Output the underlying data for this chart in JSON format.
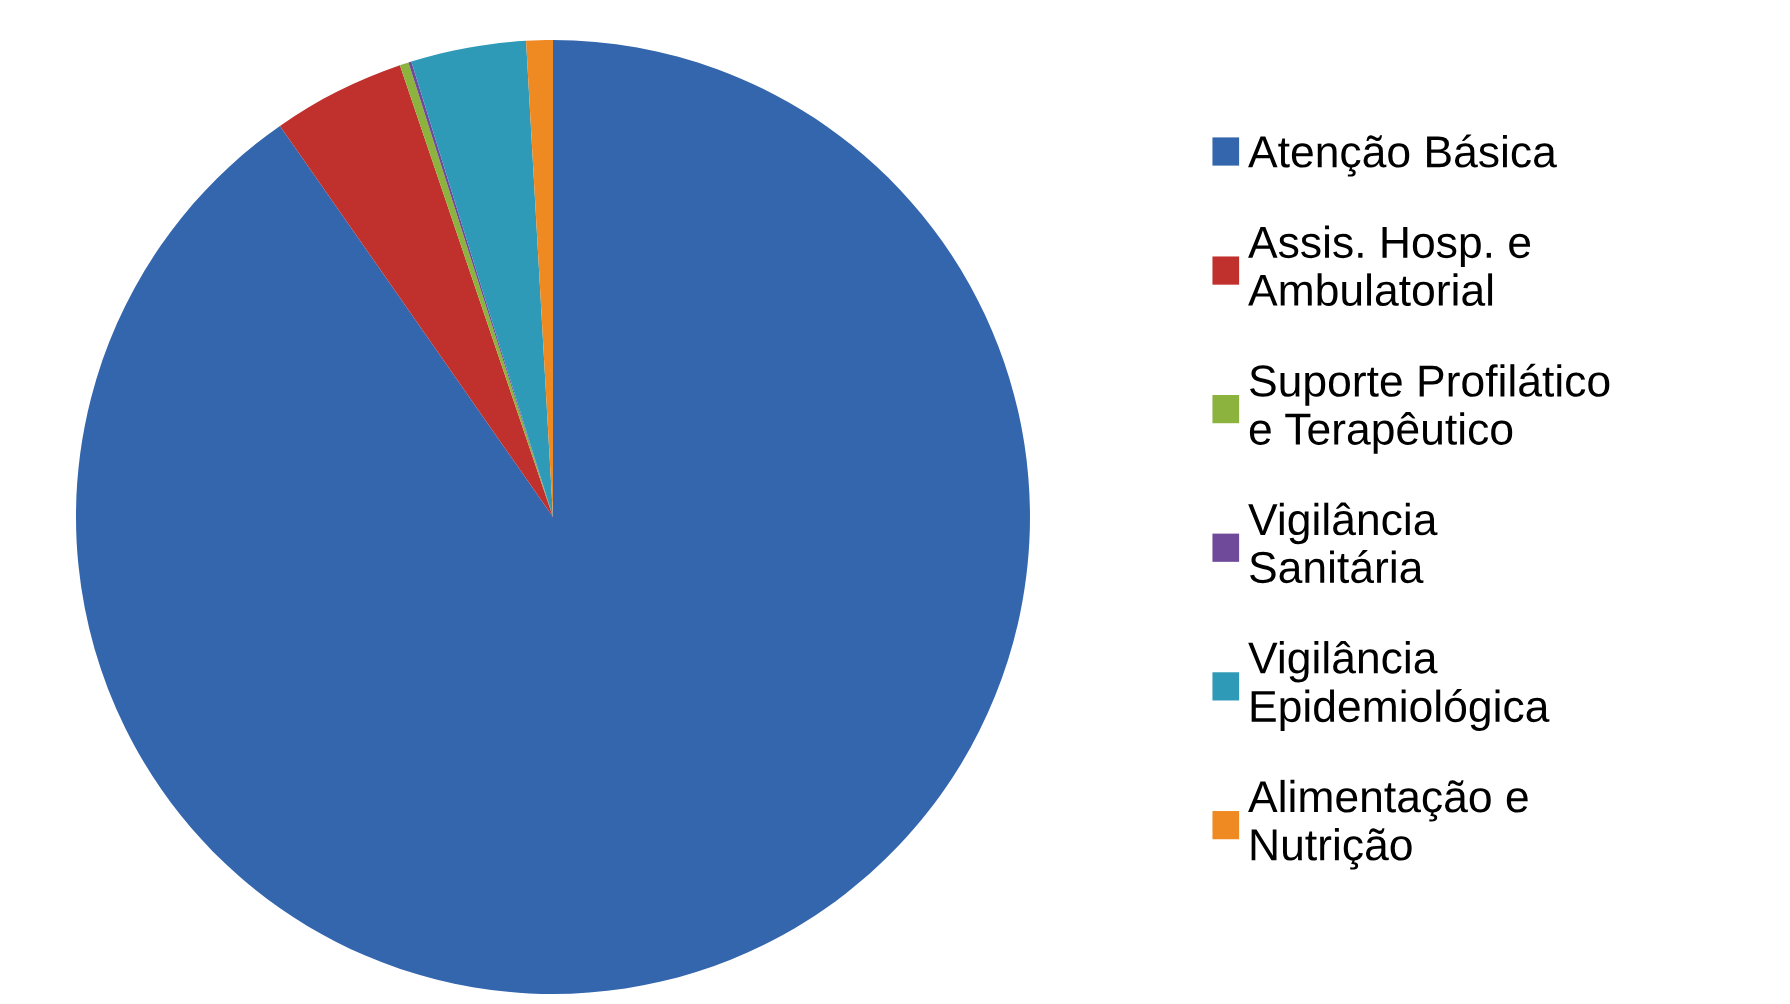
{
  "chart_data": {
    "type": "pie",
    "categories": [
      "Atenção Básica",
      "Assis. Hosp. e\nAmbulatorial",
      "Suporte Profilático\ne Terapêutico",
      "Vigilância\nSanitária",
      "Vigilância\nEpidemiológica",
      "Alimentação e\nNutrição"
    ],
    "values": [
      90.3,
      4.5,
      0.3,
      0.1,
      3.9,
      0.9
    ],
    "colors": [
      "#3466ad",
      "#c0312e",
      "#8db33f",
      "#6f4a9a",
      "#2e9ab8",
      "#ef8a22"
    ],
    "legend": "right"
  }
}
